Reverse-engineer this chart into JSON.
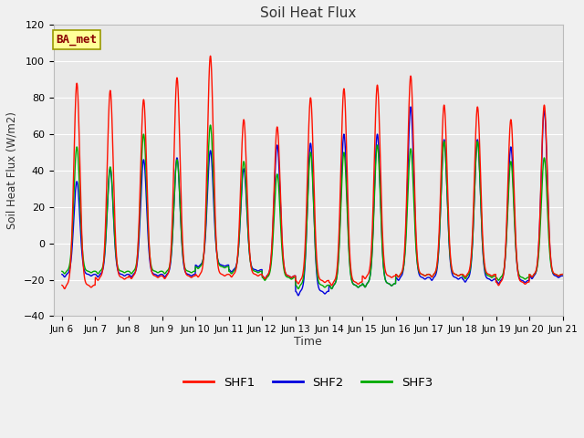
{
  "title": "Soil Heat Flux",
  "ylabel": "Soil Heat Flux (W/m2)",
  "xlabel": "Time",
  "ylim": [
    -40,
    120
  ],
  "xlim_days": [
    5.75,
    21.0
  ],
  "bg_color": "#e8e8e8",
  "grid_color": "#ffffff",
  "annotation_text": "BA_met",
  "annotation_bg": "#ffff99",
  "annotation_border": "#999900",
  "annotation_text_color": "#8b0000",
  "series_colors": {
    "SHF1": "#ff1100",
    "SHF2": "#0000dd",
    "SHF3": "#00aa00"
  },
  "tick_dates": [
    "Jun 6",
    "Jun 7",
    "Jun 8",
    "Jun 9",
    "Jun 10",
    "Jun 11",
    "Jun 12",
    "Jun 13",
    "Jun 14",
    "Jun 15",
    "Jun 16",
    "Jun 17",
    "Jun 18",
    "Jun 19",
    "Jun 20",
    "Jun 21"
  ],
  "tick_positions": [
    6,
    7,
    8,
    9,
    10,
    11,
    12,
    13,
    14,
    15,
    16,
    17,
    18,
    19,
    20,
    21
  ],
  "n_points_per_day": 144,
  "start_day": 6,
  "end_day": 21,
  "peaks_SHF1": [
    88,
    84,
    79,
    91,
    103,
    68,
    64,
    80,
    85,
    87,
    92,
    76,
    75,
    68,
    76,
    76
  ],
  "peaks_SHF2": [
    34,
    41,
    46,
    47,
    51,
    41,
    54,
    55,
    60,
    60,
    75,
    57,
    57,
    53,
    73,
    73
  ],
  "peaks_SHF3": [
    53,
    42,
    60,
    46,
    65,
    45,
    38,
    50,
    50,
    54,
    52,
    56,
    56,
    45,
    47,
    47
  ],
  "troughs_SHF1": [
    -27,
    -22,
    -21,
    -21,
    -20,
    -20,
    -21,
    -24,
    -25,
    -21,
    -20,
    -20,
    -20,
    -25,
    -20,
    -20
  ],
  "troughs_SHF2": [
    -20,
    -20,
    -20,
    -20,
    -14,
    -17,
    -21,
    -31,
    -27,
    -26,
    -22,
    -22,
    -23,
    -24,
    -21,
    -21
  ],
  "troughs_SHF3": [
    -18,
    -18,
    -18,
    -18,
    -15,
    -18,
    -22,
    -27,
    -27,
    -26,
    -20,
    -20,
    -21,
    -22,
    -20,
    -20
  ],
  "line_width": 1.0,
  "legend_entries": [
    "SHF1",
    "SHF2",
    "SHF3"
  ],
  "fig_bg": "#f0f0f0"
}
